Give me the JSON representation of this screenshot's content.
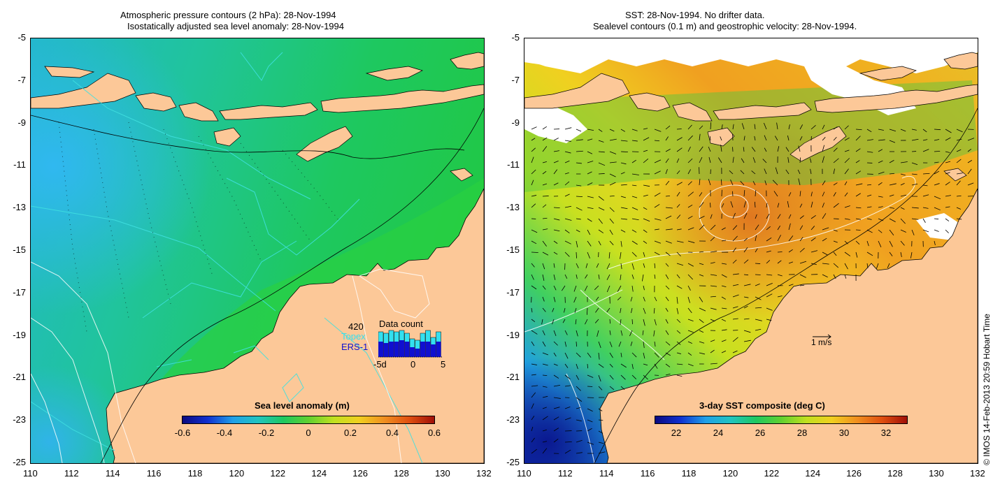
{
  "left_panel": {
    "title_line1": "Atmospheric pressure contours (2 hPa): 28-Nov-1994",
    "title_line2": "Isostatically adjusted sea level anomaly: 28-Nov-1994",
    "colorbar": {
      "title": "Sea level anomaly (m)",
      "ticks": [
        "-0.6",
        "-0.4",
        "-0.2",
        "0",
        "0.2",
        "0.4",
        "0.6"
      ],
      "range": [
        -0.6,
        0.6
      ]
    },
    "data_count": {
      "title": "Data count",
      "total": "420",
      "series1_label": "Topex",
      "series2_label": "ERS-1",
      "series1_color": "#33e0f0",
      "series2_color": "#1010d0",
      "xaxis_ticks": [
        "-5d",
        "0",
        "5"
      ]
    }
  },
  "right_panel": {
    "title_line1": "SST: 28-Nov-1994. No drifter data.",
    "title_line2": "Sealevel contours (0.1 m) and geostrophic velocity: 28-Nov-1994.",
    "colorbar": {
      "title": "3-day SST composite (deg C)",
      "ticks": [
        "22",
        "24",
        "26",
        "28",
        "30",
        "32"
      ],
      "range": [
        21,
        33
      ]
    },
    "velocity_scale_label": "1 m/s"
  },
  "axes": {
    "x_ticks": [
      "110",
      "112",
      "114",
      "116",
      "118",
      "120",
      "122",
      "124",
      "126",
      "128",
      "130",
      "132"
    ],
    "y_ticks": [
      "-5",
      "-7",
      "-9",
      "-11",
      "-13",
      "-15",
      "-17",
      "-19",
      "-21",
      "-23",
      "-25"
    ],
    "lon_range": [
      110,
      132
    ],
    "lat_range": [
      -25,
      -5
    ]
  },
  "credit": "© IMOS 14-Feb-2013 20:59 Hobart Time",
  "colors": {
    "land": "#fcc898",
    "ocean_green": "#1ec850",
    "ocean_teal": "#22c49a",
    "ocean_cyan": "#30bce0",
    "sst_yellow": "#e8f028",
    "sst_orange": "#f4a020"
  }
}
